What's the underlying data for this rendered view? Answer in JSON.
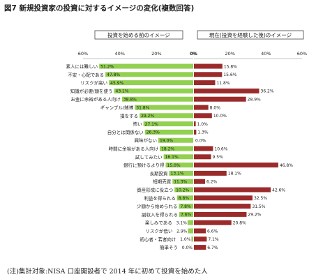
{
  "title": "図7 新規投資家の投資に対するイメージの変化(複数回答)",
  "note": "(注)集計対象:NISA 口座開設者で 2014 年に初めて投資を始めた人",
  "chart_data": {
    "type": "bar",
    "orientation": "horizontal-diverging",
    "left_header": "投資を始める前のイメージ",
    "right_header": "現在(投資を経験した後)のイメージ",
    "x_ticks_left": [
      "60%",
      "40%",
      "20%",
      "0%"
    ],
    "x_ticks_right": [
      "0%",
      "20%",
      "40%",
      "60%"
    ],
    "xlim": [
      0,
      60
    ],
    "categories": [
      "素人には難しい",
      "不安・心配である",
      "リスクが高い",
      "知識が必要/頭を使う",
      "お金に余裕がある人向け",
      "ギャンブル/賭博",
      "損をする",
      "怖い",
      "自分とは関係ない",
      "興味がない",
      "時間に余裕がある人向け",
      "試してみたい",
      "銀行に預けるより得",
      "長期投資",
      "短期売買",
      "資産形成に役立つ",
      "利益を得られる",
      "少額から始められる",
      "副収入を得られる",
      "楽しみである",
      "リスクが低い",
      "初心者・若者向け",
      "簡単そう"
    ],
    "series": [
      {
        "side": "left",
        "color": "#92d050",
        "values": [
          51.2,
          47.8,
          45.9,
          43.1,
          38.8,
          31.8,
          29.2,
          27.1,
          26.3,
          19.0,
          18.2,
          16.1,
          15.0,
          13.1,
          11.3,
          10.2,
          8.8,
          7.8,
          7.6,
          3.1,
          2.9,
          1.0,
          0.0
        ],
        "labels": [
          "51.2%",
          "47.8%",
          "45.9%",
          "43.1%",
          "38.8%",
          "31.8%",
          "29.2%",
          "27.1%",
          "26.3%",
          "19.0%",
          "18.2%",
          "16.1%",
          "15.0%",
          "13.1%",
          "11.3%",
          "10.2%",
          "8.8%",
          "7.8%",
          "7.6%",
          "3.1%",
          "2.9%",
          "1.0%",
          "0.0%"
        ]
      },
      {
        "side": "right",
        "color": "#9b2b2b",
        "values": [
          15.8,
          15.6,
          11.8,
          36.2,
          28.9,
          8.0,
          10.0,
          1.0,
          1.3,
          0.0,
          10.6,
          9.5,
          46.8,
          18.1,
          6.2,
          42.6,
          32.5,
          31.5,
          29.2,
          20.8,
          6.6,
          7.1,
          6.7
        ],
        "labels": [
          "15.8%",
          "15.6%",
          "11.8%",
          "36.2%",
          "28.9%",
          "8.0%",
          "10.0%",
          "1.0%",
          "1.3%",
          "0.0%",
          "10.6%",
          "9.5%",
          "46.8%",
          "18.1%",
          "6.2%",
          "42.6%",
          "32.5%",
          "31.5%",
          "29.2%",
          "20.8%",
          "6.6%",
          "7.1%",
          "6.7%"
        ]
      }
    ],
    "grid": false
  }
}
